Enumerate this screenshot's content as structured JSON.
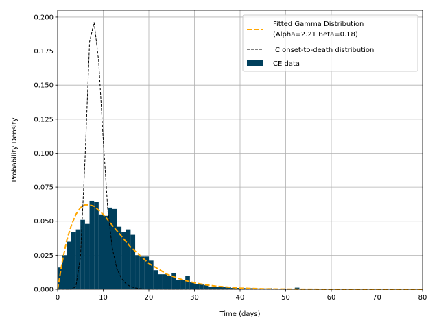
{
  "chart_data": {
    "type": "bar",
    "xlabel": "Time (days)",
    "ylabel": "Probability Density",
    "xlim": [
      0,
      80
    ],
    "ylim": [
      0,
      0.205
    ],
    "x_ticks": [
      0,
      10,
      20,
      30,
      40,
      50,
      60,
      70,
      80
    ],
    "x_tick_labels": [
      "0",
      "10",
      "20",
      "30",
      "40",
      "50",
      "60",
      "70",
      "80"
    ],
    "y_ticks": [
      0,
      0.025,
      0.05,
      0.075,
      0.1,
      0.125,
      0.15,
      0.175,
      0.2
    ],
    "y_tick_labels": [
      "0.000",
      "0.025",
      "0.050",
      "0.075",
      "0.100",
      "0.125",
      "0.150",
      "0.175",
      "0.200"
    ],
    "grid": true,
    "legend_position": "top-right",
    "colors": {
      "histogram": "#003f5c",
      "gamma_fit": "#ffa600",
      "ic_curve": "#000000",
      "grid": "#b0b0b0"
    },
    "legend": [
      {
        "key": "gamma",
        "label_line1": "Fitted Gamma Distribution",
        "label_line2": "(Alpha=2.21 Beta=0.18)"
      },
      {
        "key": "ic",
        "label_line1": "IC onset-to-death distribution"
      },
      {
        "key": "hist",
        "label_line1": "CE data"
      }
    ],
    "histogram": {
      "name": "CE data",
      "bin_width": 1,
      "bin_starts": [
        0,
        1,
        2,
        3,
        4,
        5,
        6,
        7,
        8,
        9,
        10,
        11,
        12,
        13,
        14,
        15,
        16,
        17,
        18,
        19,
        20,
        21,
        22,
        23,
        24,
        25,
        26,
        27,
        28,
        29,
        30,
        31,
        32,
        33,
        34,
        35,
        36,
        37,
        38,
        39,
        40,
        41,
        42,
        43,
        44,
        45,
        46,
        47,
        48,
        49,
        50,
        51,
        52,
        53,
        54,
        55,
        56,
        57,
        58,
        59,
        60,
        61,
        62,
        63,
        64,
        65,
        66,
        67,
        68,
        69,
        70,
        71,
        72,
        73,
        74,
        75,
        76,
        77,
        78,
        79
      ],
      "values": [
        0.016,
        0.025,
        0.035,
        0.042,
        0.044,
        0.051,
        0.048,
        0.065,
        0.064,
        0.055,
        0.054,
        0.06,
        0.059,
        0.046,
        0.042,
        0.044,
        0.04,
        0.025,
        0.024,
        0.024,
        0.021,
        0.014,
        0.011,
        0.011,
        0.01,
        0.012,
        0.007,
        0.007,
        0.01,
        0.005,
        0.004,
        0.004,
        0.003,
        0.002,
        0.002,
        0.002,
        0.0015,
        0.0015,
        0.001,
        0.001,
        0.001,
        0.0008,
        0.0008,
        0.0006,
        0.0006,
        0.0006,
        0.0008,
        0.0005,
        0.0004,
        0.0004,
        0.0003,
        0.0003,
        0.0012,
        0.0003,
        0.0002,
        0.0002,
        0.0002,
        0.0002,
        0.0002,
        0.0001,
        0.0001,
        0.0001,
        0.0001,
        0.0001,
        0.0001,
        0.0001,
        0.0001,
        0.0001,
        0.0001,
        0.0001,
        0.0001,
        0.0001,
        0.0001,
        0.0001,
        0.0001,
        0.0001,
        0.0001,
        0.0001,
        0.0001,
        0.0001
      ]
    },
    "series": [
      {
        "name": "Fitted Gamma Distribution",
        "style": "dashed",
        "x": [
          0,
          1,
          2,
          3,
          4,
          5,
          6,
          7,
          8,
          9,
          10,
          11,
          12,
          13,
          14,
          15,
          16,
          17,
          18,
          19,
          20,
          22,
          24,
          26,
          28,
          30,
          32,
          35,
          40,
          45,
          50,
          55,
          60,
          65,
          70,
          75,
          80
        ],
        "y": [
          0,
          0.02,
          0.036,
          0.047,
          0.055,
          0.06,
          0.062,
          0.062,
          0.061,
          0.058,
          0.055,
          0.051,
          0.047,
          0.043,
          0.039,
          0.035,
          0.031,
          0.028,
          0.025,
          0.022,
          0.019,
          0.015,
          0.011,
          0.0085,
          0.0064,
          0.0048,
          0.0035,
          0.0022,
          0.0009,
          0.00035,
          0.00013,
          5e-05,
          2e-05,
          1e-05,
          0,
          0,
          0
        ]
      },
      {
        "name": "IC onset-to-death distribution",
        "style": "dashed",
        "x": [
          0,
          3,
          4,
          5,
          6,
          7,
          8,
          9,
          10,
          11,
          12,
          13,
          14,
          15,
          16,
          17,
          18,
          20,
          25,
          30,
          40,
          50,
          60,
          70,
          80
        ],
        "y": [
          0,
          0,
          0.002,
          0.024,
          0.095,
          0.182,
          0.196,
          0.168,
          0.11,
          0.058,
          0.03,
          0.015,
          0.008,
          0.004,
          0.002,
          0.001,
          0.0005,
          0.0001,
          0,
          0,
          0,
          0,
          0,
          0,
          0
        ]
      }
    ]
  }
}
